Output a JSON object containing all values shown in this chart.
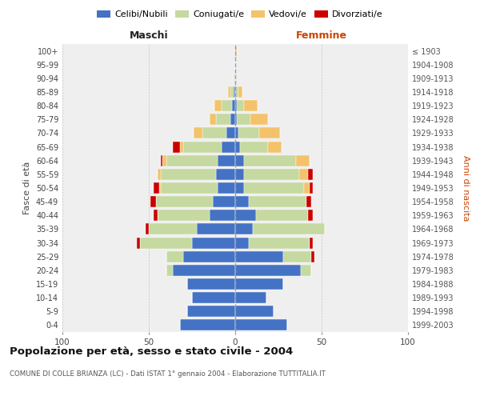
{
  "age_groups": [
    "0-4",
    "5-9",
    "10-14",
    "15-19",
    "20-24",
    "25-29",
    "30-34",
    "35-39",
    "40-44",
    "45-49",
    "50-54",
    "55-59",
    "60-64",
    "65-69",
    "70-74",
    "75-79",
    "80-84",
    "85-89",
    "90-94",
    "95-99",
    "100+"
  ],
  "birth_years": [
    "1999-2003",
    "1994-1998",
    "1989-1993",
    "1984-1988",
    "1979-1983",
    "1974-1978",
    "1969-1973",
    "1964-1968",
    "1959-1963",
    "1954-1958",
    "1949-1953",
    "1944-1948",
    "1939-1943",
    "1934-1938",
    "1929-1933",
    "1924-1928",
    "1919-1923",
    "1914-1918",
    "1909-1913",
    "1904-1908",
    "≤ 1903"
  ],
  "maschi_celibi": [
    32,
    28,
    25,
    28,
    36,
    30,
    25,
    22,
    15,
    13,
    10,
    11,
    10,
    8,
    5,
    3,
    2,
    1,
    0,
    0,
    0
  ],
  "maschi_coniugati": [
    0,
    0,
    0,
    0,
    4,
    10,
    30,
    28,
    30,
    33,
    33,
    32,
    30,
    22,
    14,
    8,
    6,
    2,
    1,
    0,
    0
  ],
  "maschi_vedovi": [
    0,
    0,
    0,
    0,
    0,
    0,
    0,
    0,
    0,
    0,
    1,
    2,
    2,
    2,
    5,
    4,
    4,
    1,
    0,
    0,
    0
  ],
  "maschi_divorziati": [
    0,
    0,
    0,
    0,
    0,
    0,
    2,
    2,
    2,
    3,
    3,
    0,
    1,
    4,
    0,
    0,
    0,
    0,
    0,
    0,
    0
  ],
  "femmine_celibi": [
    30,
    22,
    18,
    28,
    38,
    28,
    8,
    10,
    12,
    8,
    5,
    5,
    5,
    3,
    2,
    1,
    1,
    0,
    0,
    0,
    0
  ],
  "femmine_coniugati": [
    0,
    0,
    0,
    0,
    6,
    16,
    35,
    42,
    30,
    33,
    35,
    32,
    30,
    16,
    12,
    8,
    4,
    2,
    0,
    0,
    0
  ],
  "femmine_vedovi": [
    0,
    0,
    0,
    0,
    0,
    0,
    0,
    0,
    0,
    0,
    3,
    5,
    8,
    8,
    12,
    10,
    8,
    2,
    0,
    0,
    1
  ],
  "femmine_divorziati": [
    0,
    0,
    0,
    0,
    0,
    2,
    2,
    0,
    3,
    3,
    2,
    3,
    0,
    0,
    0,
    0,
    0,
    0,
    0,
    0,
    0
  ],
  "colors": {
    "celibi": "#4472C4",
    "coniugati": "#c5d9a0",
    "vedovi": "#f4c26a",
    "divorziati": "#cc0000"
  },
  "title": "Popolazione per età, sesso e stato civile - 2004",
  "subtitle": "COMUNE DI COLLE BRIANZA (LC) - Dati ISTAT 1° gennaio 2004 - Elaborazione TUTTITALIA.IT",
  "ylabel": "Fasce di età",
  "ylabel_right": "Anni di nascita",
  "xlabel_left": "Maschi",
  "xlabel_right": "Femmine",
  "xlim": 100,
  "background_color": "#efefef"
}
